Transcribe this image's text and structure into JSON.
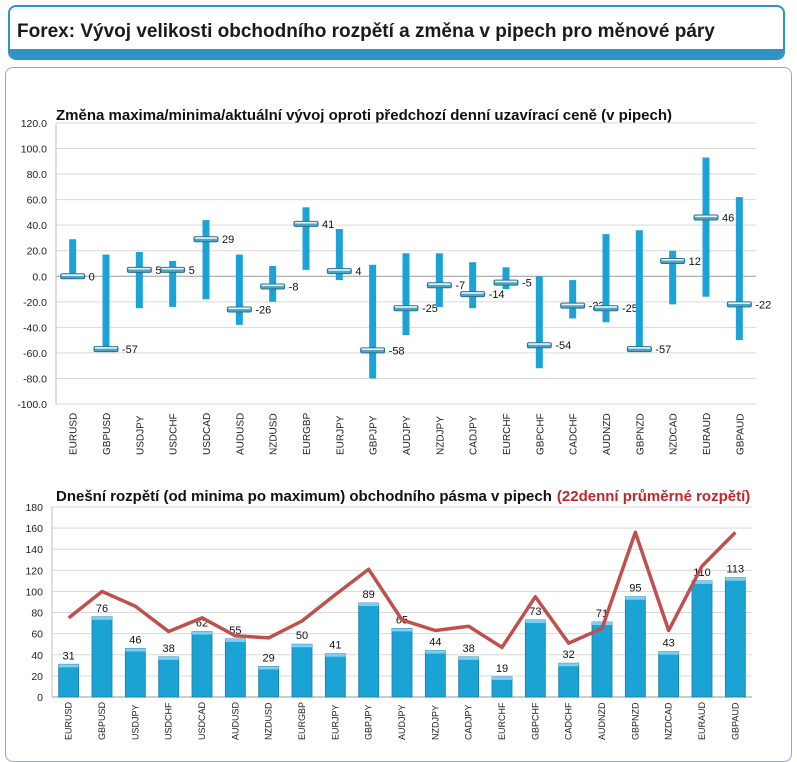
{
  "header": {
    "title": "Forex: Vývoj velikosti obchodního rozpětí a změna v pipech pro měnové páry"
  },
  "colors": {
    "accent": "#2f93c5",
    "bar": "#1ba3d6",
    "line": "#c0504d"
  },
  "chart_data": [
    {
      "type": "bar",
      "title": "Změna maxima/minima/aktuální vývoj oproti předchozí denní uzavírací ceně (v pipech)",
      "ylim": [
        -100,
        120
      ],
      "yticks": [
        "120.0",
        "100.0",
        "80.0",
        "60.0",
        "40.0",
        "20.0",
        "0.0",
        "-20.0",
        "-40.0",
        "-60.0",
        "-80.0",
        "-100.0"
      ],
      "grid": true,
      "categories": [
        "EURUSD",
        "GBPUSD",
        "USDJPY",
        "USDCHF",
        "USDCAD",
        "AUDUSD",
        "NZDUSD",
        "EURGBP",
        "EURJPY",
        "GBPJPY",
        "AUDJPY",
        "NZDJPY",
        "CADJPY",
        "EURCHF",
        "GBPCHF",
        "CADCHF",
        "AUDNZD",
        "GBPNZD",
        "NZDCAD",
        "EURAUD",
        "GBPAUD"
      ],
      "series": [
        {
          "values_max": [
            29,
            17,
            19,
            12,
            44,
            17,
            8,
            54,
            37,
            9,
            18,
            18,
            11,
            7,
            0,
            -3,
            33,
            36,
            20,
            93,
            62
          ]
        },
        {
          "values_min": [
            -1,
            -57,
            -25,
            -24,
            -18,
            -38,
            -20,
            5,
            -3,
            -80,
            -46,
            -24,
            -25,
            -10,
            -72,
            -33,
            -36,
            -57,
            -22,
            -16,
            -50
          ]
        },
        {
          "values_current": [
            0,
            -57,
            5,
            5,
            29,
            -26,
            -8,
            41,
            4,
            -58,
            -25,
            -7,
            -14,
            -5,
            -54,
            -23,
            -25,
            -57,
            12,
            46,
            -22
          ]
        }
      ],
      "labels": [
        "0",
        "-57",
        "5",
        "5",
        "29",
        "-26",
        "-8",
        "41",
        "4",
        "-58",
        "-25",
        "-7",
        "-14",
        "-5",
        "-54",
        "-23",
        "-25",
        "-57",
        "12",
        "46",
        "-22"
      ]
    },
    {
      "type": "bar",
      "title": "Dnešní rozpětí (od minima po maximum) obchodního pásma v pipech",
      "title_highlight": "(22denní průměrné rozpětí)",
      "ylim": [
        0,
        180
      ],
      "yticks": [
        "180",
        "160",
        "140",
        "120",
        "100",
        "80",
        "60",
        "40",
        "20",
        "0"
      ],
      "grid": true,
      "categories": [
        "EURUSD",
        "GBPUSD",
        "USDJPY",
        "USDCHF",
        "USDCAD",
        "AUDUSD",
        "NZDUSD",
        "EURGBP",
        "EURJPY",
        "GBPJPY",
        "AUDJPY",
        "NZDJPY",
        "CADJPY",
        "EURCHF",
        "GBPCHF",
        "CADCHF",
        "AUDNZD",
        "GBPNZD",
        "NZDCAD",
        "EURAUD",
        "GBPAUD"
      ],
      "series": [
        {
          "type": "bar",
          "values": [
            31,
            76,
            46,
            38,
            62,
            55,
            29,
            50,
            41,
            89,
            65,
            44,
            38,
            19,
            73,
            32,
            71,
            95,
            43,
            110,
            113
          ]
        },
        {
          "type": "line",
          "values": [
            75,
            100,
            86,
            62,
            75,
            58,
            56,
            72,
            97,
            121,
            73,
            63,
            67,
            47,
            95,
            51,
            65,
            156,
            63,
            124,
            156
          ]
        }
      ]
    }
  ]
}
